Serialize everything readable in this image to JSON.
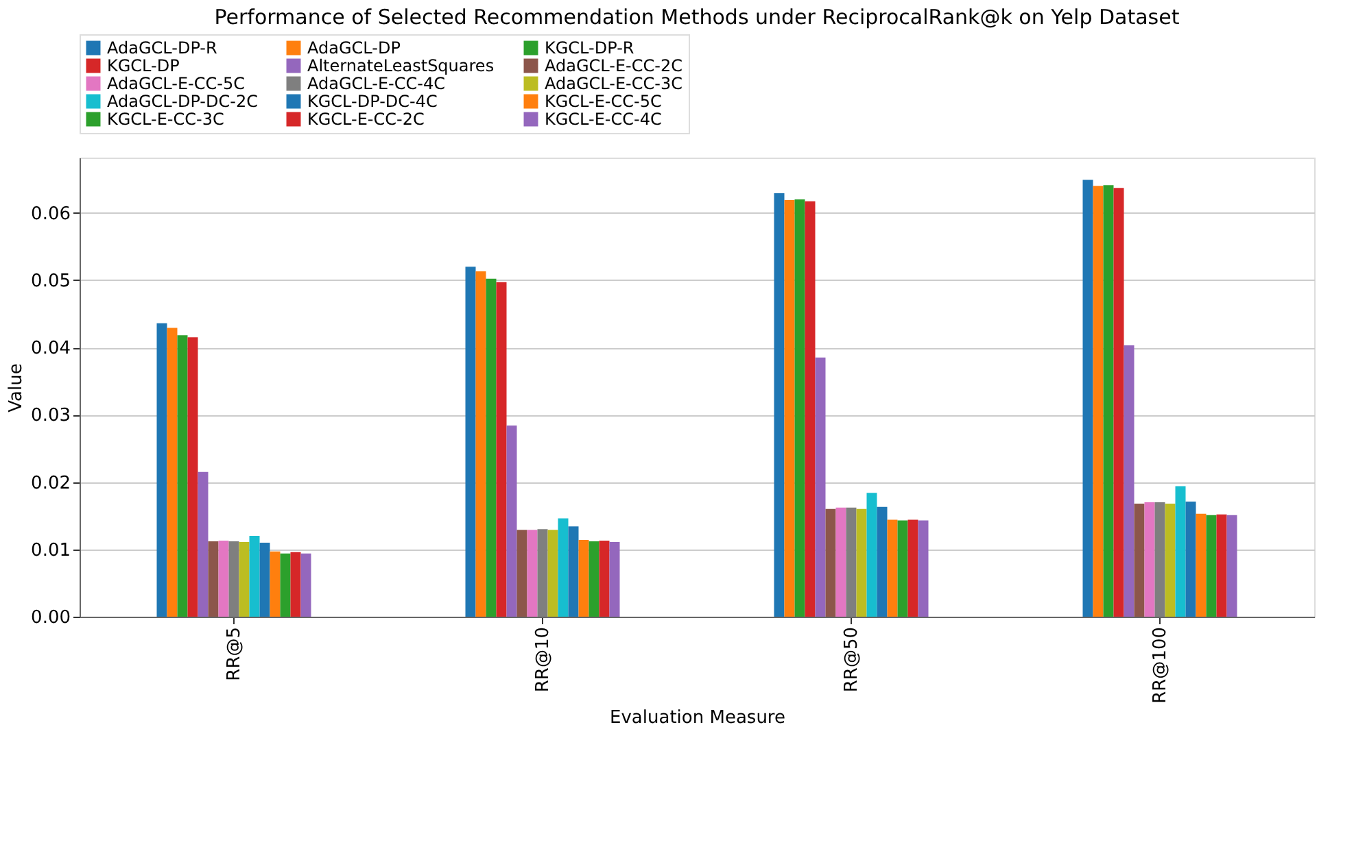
{
  "chart_data": {
    "type": "bar",
    "title": "Performance of Selected Recommendation Methods under ReciprocalRank@k on Yelp Dataset",
    "xlabel": "Evaluation Measure",
    "ylabel": "Value",
    "categories": [
      "RR@5",
      "RR@10",
      "RR@50",
      "RR@100"
    ],
    "series": [
      {
        "name": "AdaGCL-DP-R",
        "color": "#1f77b4",
        "values": [
          0.0436,
          0.052,
          0.0629,
          0.0649
        ]
      },
      {
        "name": "AdaGCL-DP",
        "color": "#ff7f0e",
        "values": [
          0.0429,
          0.0513,
          0.0619,
          0.064
        ]
      },
      {
        "name": "KGCL-DP-R",
        "color": "#2ca02c",
        "values": [
          0.0418,
          0.0502,
          0.062,
          0.0641
        ]
      },
      {
        "name": "KGCL-DP",
        "color": "#d62728",
        "values": [
          0.0415,
          0.0497,
          0.0617,
          0.0637
        ]
      },
      {
        "name": "AlternateLeastSquares",
        "color": "#9467bd",
        "values": [
          0.0215,
          0.0284,
          0.0385,
          0.0403
        ]
      },
      {
        "name": "AdaGCL-E-CC-2C",
        "color": "#8c564b",
        "values": [
          0.0112,
          0.0129,
          0.016,
          0.0168
        ]
      },
      {
        "name": "AdaGCL-E-CC-5C",
        "color": "#e377c2",
        "values": [
          0.0113,
          0.0129,
          0.0162,
          0.017
        ]
      },
      {
        "name": "AdaGCL-E-CC-4C",
        "color": "#7f7f7f",
        "values": [
          0.0112,
          0.013,
          0.0162,
          0.017
        ]
      },
      {
        "name": "AdaGCL-E-CC-3C",
        "color": "#bcbd22",
        "values": [
          0.0111,
          0.0129,
          0.016,
          0.0168
        ]
      },
      {
        "name": "AdaGCL-DP-DC-2C",
        "color": "#17becf",
        "values": [
          0.012,
          0.0146,
          0.0184,
          0.0194
        ]
      },
      {
        "name": "KGCL-DP-DC-4C",
        "color": "#1f77b4",
        "values": [
          0.011,
          0.0134,
          0.0163,
          0.0171
        ]
      },
      {
        "name": "KGCL-E-CC-5C",
        "color": "#ff7f0e",
        "values": [
          0.0097,
          0.0114,
          0.0144,
          0.0153
        ]
      },
      {
        "name": "KGCL-E-CC-3C",
        "color": "#2ca02c",
        "values": [
          0.0094,
          0.0112,
          0.0143,
          0.0151
        ]
      },
      {
        "name": "KGCL-E-CC-2C",
        "color": "#d62728",
        "values": [
          0.0096,
          0.0113,
          0.0144,
          0.0152
        ]
      },
      {
        "name": "KGCL-E-CC-4C",
        "color": "#9467bd",
        "values": [
          0.0094,
          0.0111,
          0.0143,
          0.0151
        ]
      }
    ],
    "ylim": [
      0,
      0.0682
    ],
    "yticks": [
      {
        "value": 0,
        "label": "0.00"
      },
      0.01,
      0.02,
      0.03,
      0.04,
      0.05,
      0.06
    ],
    "grid": "y",
    "legend": "top"
  }
}
